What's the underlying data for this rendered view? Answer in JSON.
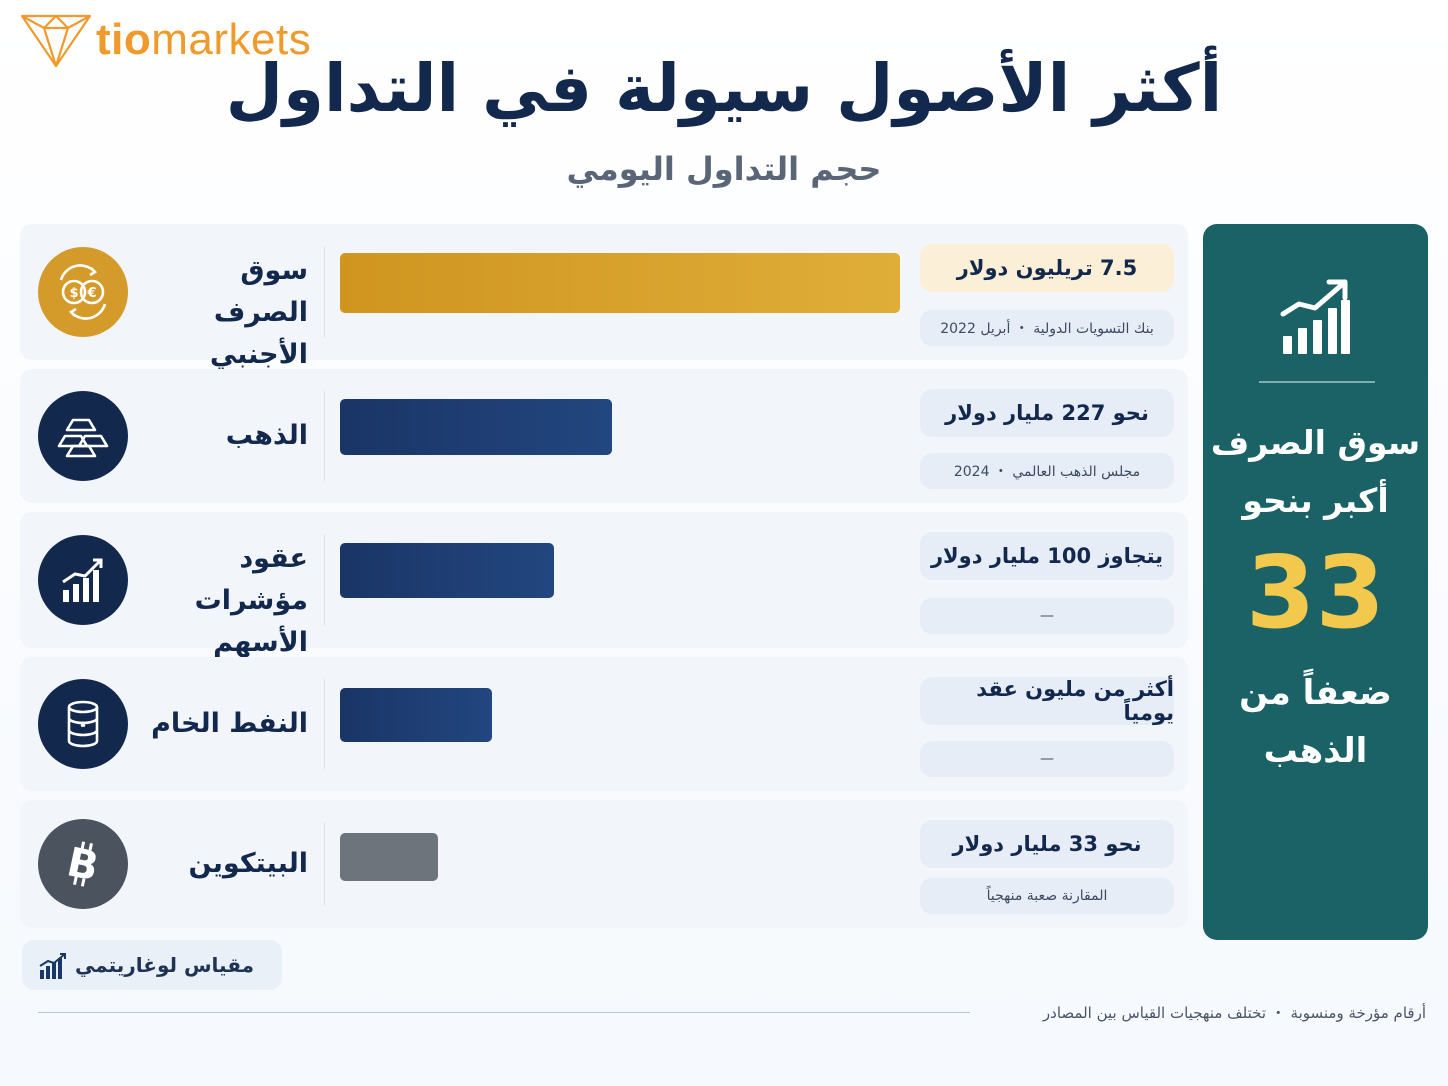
{
  "brand": {
    "logo_bold": "tio",
    "logo_light": "markets",
    "accent": "#ef9a2a"
  },
  "header": {
    "title": "أكثر الأصول سيولة في التداول",
    "subtitle": "حجم التداول اليومي"
  },
  "rows": [
    {
      "label_line1": "سوق الصرف",
      "label_line2": "الأجنبي",
      "icon": "currency-exchange-icon",
      "icon_color": "#d49a2a",
      "bar_color": "#d29a25",
      "value": "7.5 تريليون دولار",
      "source": "بنك التسويات الدولية ・ أبريل 2022",
      "value_bg": "#fbf0d7"
    },
    {
      "label_line1": "الذهب",
      "label_line2": "",
      "icon": "gold-bars-icon",
      "icon_color": "#13284d",
      "bar_color": "#1b3766",
      "value": "نحو 227 مليار دولار",
      "source": "مجلس الذهب العالمي ・ 2024",
      "value_bg": "#e6edf6"
    },
    {
      "label_line1": "عقود مؤشرات",
      "label_line2": "الأسهم",
      "icon": "rising-chart-icon",
      "icon_color": "#13284d",
      "bar_color": "#1b3766",
      "value": "يتجاوز 100 مليار دولار",
      "source": "—",
      "value_bg": "#e6edf6"
    },
    {
      "label_line1": "النفط الخام",
      "label_line2": "",
      "icon": "oil-barrel-icon",
      "icon_color": "#13284d",
      "bar_color": "#1b3766",
      "value": "أكثر من مليون عقد يومياً",
      "source": "—",
      "value_bg": "#e6edf6"
    },
    {
      "label_line1": "البيتكوين",
      "label_line2": "",
      "icon": "bitcoin-icon",
      "icon_color": "#4b535f",
      "bar_color": "#6e747c",
      "value": "نحو 33 مليار دولار",
      "source": "المقارنة صعبة منهجياً",
      "value_bg": "#e6edf6"
    }
  ],
  "chart_data": {
    "type": "bar",
    "title": "أكثر الأصول سيولة في التداول",
    "subtitle": "حجم التداول اليومي",
    "categories": [
      "سوق الصرف الأجنبي",
      "الذهب",
      "عقود مؤشرات الأسهم",
      "النفط الخام",
      "البيتكوين"
    ],
    "scale": "log",
    "relative_bar_lengths": [
      1.0,
      0.485,
      0.383,
      0.272,
      0.175
    ]
  },
  "side_panel": {
    "icon": "growth-chart-icon",
    "text_line1": "سوق الصرف",
    "text_line2": "أكبر بنحو",
    "big_number": "33",
    "text_line3": "ضعفاً من",
    "text_line4": "الذهب",
    "bg_color": "#1a6265",
    "number_color": "#f2c94c"
  },
  "legend": {
    "label": "مقياس لوغاريتمي",
    "icon": "bar-chart-icon"
  },
  "footnote": "أرقام مؤرخة ومنسوبة ・ تختلف منهجيات القياس بين المصادر"
}
